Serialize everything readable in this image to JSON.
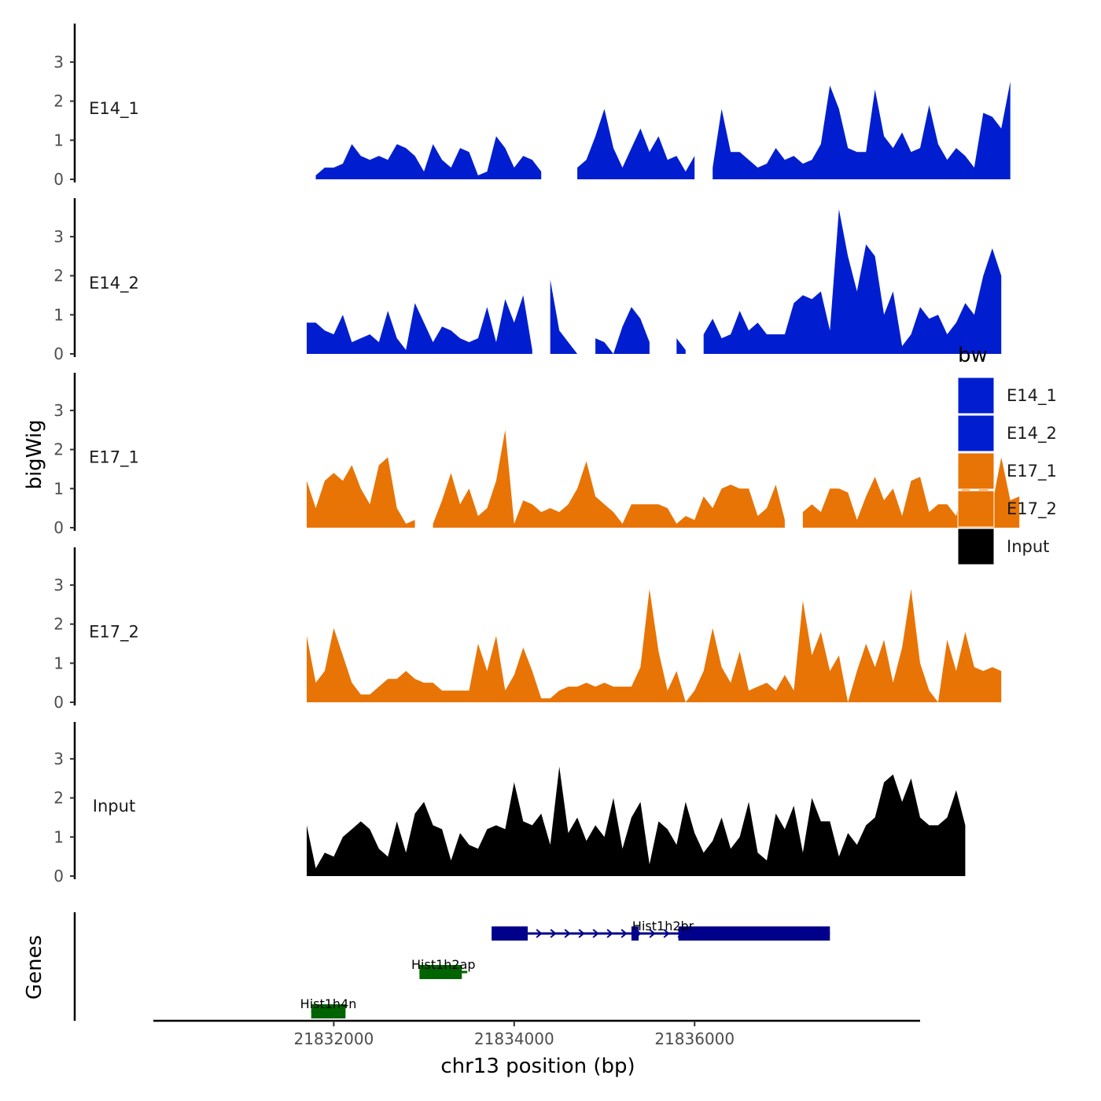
{
  "chart_data": {
    "type": "area",
    "subtype": "genome-coverage-tracks",
    "xlabel": "chr13 position (bp)",
    "ylabel": "bigWig",
    "genes_label": "Genes",
    "xlim": [
      21830000,
      21838500
    ],
    "ylim": [
      0,
      3.9
    ],
    "x_ticks": [
      {
        "value": 21832000,
        "label": "21832000"
      },
      {
        "value": 21834000,
        "label": "21834000"
      },
      {
        "value": 21836000,
        "label": "21836000"
      }
    ],
    "y_ticks": [
      {
        "value": 0,
        "label": "0"
      },
      {
        "value": 1,
        "label": "1"
      },
      {
        "value": 2,
        "label": "2"
      },
      {
        "value": 3,
        "label": "3"
      }
    ],
    "legend": {
      "title": "bw",
      "entries": [
        {
          "label": "E14_1",
          "color": "#001ECF"
        },
        {
          "label": "E14_2",
          "color": "#001ECF"
        },
        {
          "label": "E17_1",
          "color": "#E87405"
        },
        {
          "label": "E17_2",
          "color": "#E87405"
        },
        {
          "label": "Input",
          "color": "#000000"
        }
      ]
    },
    "x_start": 21831700,
    "x_step": 100,
    "series": [
      {
        "name": "E14_1",
        "label": "E14_1",
        "color": "#001ECF",
        "values": [
          null,
          0.1,
          0.3,
          0.3,
          0.4,
          0.9,
          0.6,
          0.5,
          0.6,
          0.5,
          0.9,
          0.8,
          0.6,
          0.2,
          0.9,
          0.5,
          0.3,
          0.8,
          0.7,
          0.1,
          0.2,
          1.1,
          0.8,
          0.3,
          0.6,
          0.5,
          0.2,
          null,
          null,
          null,
          0.3,
          0.5,
          1.1,
          1.8,
          0.8,
          0.3,
          0.8,
          1.3,
          0.7,
          1.1,
          0.5,
          0.6,
          0.2,
          0.6,
          null,
          0.3,
          1.8,
          0.7,
          0.7,
          0.5,
          0.3,
          0.4,
          0.8,
          0.5,
          0.6,
          0.4,
          0.5,
          0.9,
          2.4,
          1.8,
          0.8,
          0.7,
          0.7,
          2.3,
          1.1,
          0.8,
          1.2,
          0.7,
          0.8,
          1.9,
          0.9,
          0.5,
          0.8,
          0.6,
          0.3,
          1.7,
          1.6,
          1.3,
          2.5
        ]
      },
      {
        "name": "E14_2",
        "label": "E14_2",
        "color": "#001ECF",
        "values": [
          0.8,
          0.8,
          0.6,
          0.5,
          1.0,
          0.3,
          0.4,
          0.5,
          0.3,
          1.1,
          0.4,
          0.1,
          1.3,
          0.8,
          0.3,
          0.7,
          0.6,
          0.4,
          0.3,
          0.4,
          1.2,
          0.3,
          1.4,
          0.8,
          1.5,
          0.1,
          null,
          1.9,
          0.6,
          0.3,
          0.0,
          null,
          0.4,
          0.3,
          0.0,
          0.7,
          1.2,
          0.9,
          0.3,
          null,
          null,
          0.4,
          0.1,
          null,
          0.5,
          0.9,
          0.4,
          0.5,
          1.1,
          0.6,
          0.8,
          0.5,
          0.5,
          0.5,
          1.3,
          1.5,
          1.4,
          1.6,
          0.6,
          3.7,
          2.5,
          1.6,
          2.8,
          2.5,
          1.0,
          1.6,
          0.2,
          0.5,
          1.2,
          0.9,
          1.0,
          0.5,
          0.8,
          1.3,
          1.0,
          2.0,
          2.7,
          2.0
        ]
      },
      {
        "name": "E17_1",
        "label": "E17_1",
        "color": "#E87405",
        "values": [
          1.2,
          0.5,
          1.2,
          1.4,
          1.2,
          1.6,
          1.0,
          0.6,
          1.6,
          1.8,
          0.5,
          0.1,
          0.2,
          null,
          0.1,
          0.7,
          1.4,
          0.6,
          1.0,
          0.3,
          0.5,
          1.2,
          2.5,
          0.1,
          0.7,
          0.6,
          0.4,
          0.5,
          0.4,
          0.6,
          1.0,
          1.7,
          0.8,
          0.6,
          0.4,
          0.1,
          0.6,
          0.6,
          0.6,
          0.6,
          0.5,
          0.1,
          0.3,
          0.2,
          0.8,
          0.5,
          1.0,
          1.1,
          1.0,
          1.0,
          0.3,
          0.5,
          1.1,
          0.2,
          null,
          0.4,
          0.6,
          0.4,
          1.0,
          1.0,
          0.9,
          0.2,
          0.8,
          1.3,
          0.7,
          1.0,
          0.3,
          1.2,
          1.3,
          0.4,
          0.6,
          0.6,
          0.3,
          1.4,
          0.5,
          1.4,
          0.6,
          1.8,
          0.7,
          0.8
        ]
      },
      {
        "name": "E17_2",
        "label": "E17_2",
        "color": "#E87405",
        "values": [
          1.7,
          0.5,
          0.8,
          1.9,
          1.2,
          0.5,
          0.2,
          0.2,
          0.4,
          0.6,
          0.6,
          0.8,
          0.6,
          0.5,
          0.5,
          0.3,
          0.3,
          0.3,
          0.3,
          1.5,
          0.8,
          1.7,
          0.3,
          0.7,
          1.4,
          0.8,
          0.1,
          0.1,
          0.3,
          0.4,
          0.4,
          0.5,
          0.4,
          0.5,
          0.4,
          0.4,
          0.4,
          0.9,
          2.9,
          1.3,
          0.3,
          0.8,
          0.0,
          0.3,
          0.8,
          1.9,
          0.9,
          0.5,
          1.3,
          0.3,
          0.4,
          0.5,
          0.3,
          0.7,
          0.3,
          2.6,
          1.2,
          1.8,
          0.8,
          1.2,
          0.0,
          0.8,
          1.5,
          0.9,
          1.6,
          0.5,
          1.4,
          2.9,
          1.0,
          0.3,
          0.0,
          1.6,
          0.8,
          1.8,
          0.9,
          0.8,
          0.9,
          0.8
        ]
      },
      {
        "name": "Input",
        "label": "Input",
        "color": "#000000",
        "values": [
          1.3,
          0.2,
          0.6,
          0.5,
          1.0,
          1.2,
          1.4,
          1.2,
          0.7,
          0.5,
          1.4,
          0.6,
          1.6,
          1.9,
          1.3,
          1.2,
          0.4,
          1.1,
          0.8,
          0.7,
          1.2,
          1.3,
          1.2,
          2.4,
          1.4,
          1.3,
          1.6,
          0.8,
          2.8,
          1.1,
          1.5,
          0.9,
          1.3,
          1.0,
          2.0,
          0.7,
          1.5,
          1.9,
          0.3,
          1.4,
          1.2,
          0.8,
          1.9,
          1.1,
          0.6,
          0.9,
          1.5,
          0.7,
          1.0,
          1.9,
          0.6,
          0.4,
          1.6,
          1.2,
          1.8,
          0.6,
          2.0,
          1.4,
          1.4,
          0.5,
          1.1,
          0.8,
          1.3,
          1.5,
          2.4,
          2.6,
          1.9,
          2.5,
          1.5,
          1.3,
          1.3,
          1.5,
          2.2,
          1.3
        ]
      }
    ],
    "genes": [
      {
        "name": "Hist1h2br",
        "row": 0,
        "color": "#00008B",
        "start": 21833750,
        "end": 21837500,
        "exons": [
          [
            21833750,
            21834150
          ],
          [
            21835300,
            21835380
          ],
          [
            21835820,
            21837500
          ]
        ],
        "strand": "+"
      },
      {
        "name": "Hist1h2ap",
        "row": 1,
        "color": "#006400",
        "start": 21832950,
        "end": 21833480,
        "exons": [
          [
            21832950,
            21833420
          ]
        ],
        "strand": "+"
      },
      {
        "name": "Hist1h4n",
        "row": 2,
        "color": "#006400",
        "start": 21831750,
        "end": 21832130,
        "exons": [
          [
            21831750,
            21832130
          ]
        ],
        "strand": "+"
      }
    ]
  }
}
